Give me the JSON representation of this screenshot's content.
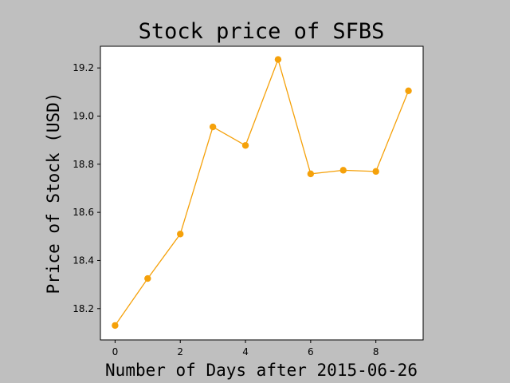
{
  "chart_data": {
    "type": "line",
    "title": "Stock price of SFBS",
    "xlabel": "Number of Days after 2015-06-26",
    "ylabel": "Price of Stock (USD)",
    "x": [
      0,
      1,
      2,
      3,
      4,
      5,
      6,
      7,
      8,
      9
    ],
    "series": [
      {
        "values": [
          18.13,
          18.325,
          18.51,
          18.955,
          18.878,
          19.235,
          18.76,
          18.775,
          18.77,
          19.105
        ],
        "color": "#f5a10a"
      }
    ],
    "xlim": [
      -0.45,
      9.45
    ],
    "ylim": [
      18.07,
      19.29
    ],
    "xticks": [
      0,
      2,
      4,
      6,
      8
    ],
    "yticks": [
      18.2,
      18.4,
      18.6,
      18.8,
      19.0,
      19.2
    ],
    "xtick_labels": [
      "0",
      "2",
      "4",
      "6",
      "8"
    ],
    "ytick_labels": [
      "18.2",
      "18.4",
      "18.6",
      "18.8",
      "19.0",
      "19.2"
    ],
    "grid": false,
    "background": "#bfbfbf",
    "plot_background": "#ffffff"
  }
}
